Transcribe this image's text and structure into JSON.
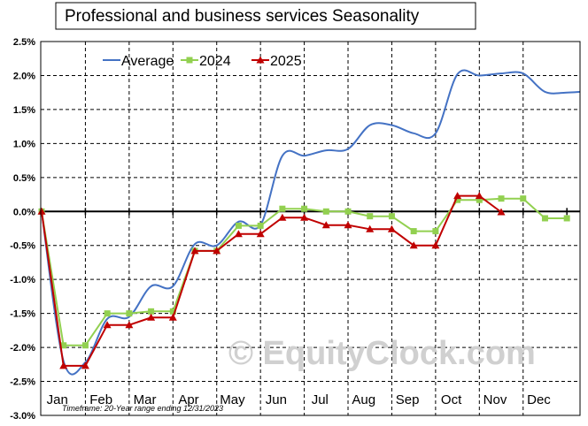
{
  "chart_data": {
    "type": "line",
    "title": "Professional and business services Seasonality",
    "xlabel": "",
    "ylabel": "",
    "ylim": [
      -3.0,
      2.5
    ],
    "y_ticks": [
      "2.5%",
      "2.0%",
      "1.5%",
      "1.0%",
      "0.5%",
      "0.0%",
      "-0.5%",
      "-1.0%",
      "-1.5%",
      "-2.0%",
      "-2.5%",
      "-3.0%"
    ],
    "y_tick_values": [
      2.5,
      2.0,
      1.5,
      1.0,
      0.5,
      0.0,
      -0.5,
      -1.0,
      -1.5,
      -2.0,
      -2.5,
      -3.0
    ],
    "x_range": [
      0,
      12.3
    ],
    "months": [
      "Jan",
      "Feb",
      "Mar",
      "Apr",
      "May",
      "Jun",
      "Jul",
      "Aug",
      "Sep",
      "Oct",
      "Nov",
      "Dec"
    ],
    "grid": true,
    "legend_position": "top-left",
    "footnote": "Timeframe: 20-Year range ending 12/31/2023",
    "watermark": "© EquityClock.com",
    "series": [
      {
        "name": "Average",
        "color": "#4472c4",
        "marker": "none",
        "x": [
          0,
          0.5,
          1.0,
          1.5,
          2.0,
          2.5,
          3.0,
          3.5,
          4.0,
          4.5,
          5.0,
          5.5,
          6.0,
          6.5,
          7.0,
          7.5,
          8.0,
          8.5,
          9.0,
          9.5,
          10.0,
          10.5,
          11.0,
          11.5,
          12.0,
          12.3
        ],
        "y": [
          0.0,
          -2.2,
          -2.22,
          -1.58,
          -1.55,
          -1.1,
          -1.1,
          -0.48,
          -0.5,
          -0.15,
          -0.2,
          0.82,
          0.82,
          0.9,
          0.92,
          1.27,
          1.27,
          1.15,
          1.15,
          2.02,
          2.0,
          2.03,
          2.03,
          1.76,
          1.75,
          1.76
        ]
      },
      {
        "name": "2024",
        "color": "#92d050",
        "marker": "square",
        "x": [
          0,
          0.5,
          1.0,
          1.5,
          2.0,
          2.5,
          3.0,
          3.5,
          4.0,
          4.5,
          5.0,
          5.5,
          6.0,
          6.5,
          7.0,
          7.5,
          8.0,
          8.5,
          9.0,
          9.5,
          10.0,
          10.5,
          11.0,
          11.5,
          12.0
        ],
        "y": [
          0.0,
          -1.97,
          -1.97,
          -1.5,
          -1.5,
          -1.47,
          -1.47,
          -0.58,
          -0.58,
          -0.21,
          -0.21,
          0.04,
          0.04,
          0.0,
          0.0,
          -0.07,
          -0.07,
          -0.29,
          -0.29,
          0.17,
          0.17,
          0.19,
          0.19,
          -0.1,
          -0.1
        ]
      },
      {
        "name": "2025",
        "color": "#c00000",
        "marker": "triangle",
        "x": [
          0,
          0.5,
          1.0,
          1.5,
          2.0,
          2.5,
          3.0,
          3.5,
          4.0,
          4.5,
          5.0,
          5.5,
          6.0,
          6.5,
          7.0,
          7.5,
          8.0,
          8.5,
          9.0,
          9.5,
          10.0,
          10.5
        ],
        "y": [
          0.0,
          -2.27,
          -2.27,
          -1.67,
          -1.67,
          -1.56,
          -1.56,
          -0.58,
          -0.58,
          -0.33,
          -0.33,
          -0.09,
          -0.09,
          -0.2,
          -0.2,
          -0.26,
          -0.26,
          -0.5,
          -0.5,
          0.23,
          0.23,
          -0.01
        ]
      }
    ]
  }
}
